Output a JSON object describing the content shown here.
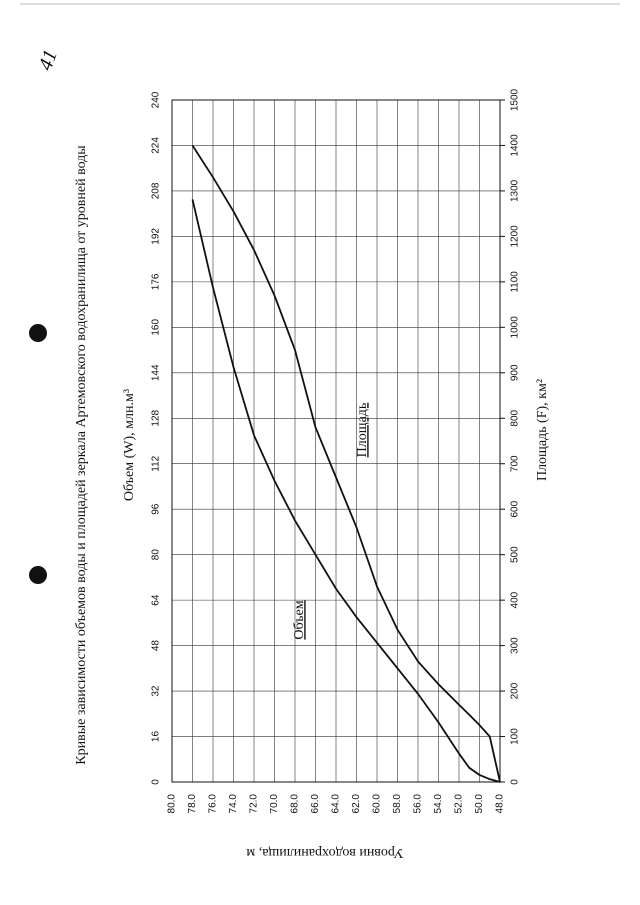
{
  "page_number": "41",
  "chart_data": {
    "type": "line",
    "title": "Кривые зависимости объемов воды и площадей зеркала Артемовского водохранилища от уровней воды",
    "x_label": "Уровни водохранилища, м",
    "y_label": "Объем (W),  млн.м³",
    "y2_label": "Площадь (F), км²",
    "x": [
      48,
      49,
      50,
      51,
      52,
      54,
      56,
      58,
      60,
      62,
      64,
      66,
      68,
      70,
      72,
      74,
      76,
      78
    ],
    "series": [
      {
        "name": "Объем",
        "color": "#111111",
        "values": [
          0,
          1,
          2.5,
          5,
          10,
          21,
          31,
          40,
          49,
          58,
          68,
          80,
          92,
          106,
          122,
          146,
          174,
          205
        ]
      },
      {
        "name": "Площадь",
        "color": "#111111",
        "axis": "y2",
        "values": [
          0,
          100,
          125,
          148,
          170,
          215,
          265,
          335,
          430,
          560,
          670,
          780,
          950,
          1070,
          1170,
          1255,
          1330,
          1400
        ]
      }
    ],
    "xlim": [
      48,
      80
    ],
    "xticks": [
      {
        "value": 48,
        "label": "48.0"
      },
      {
        "value": 50,
        "label": "50.0"
      },
      {
        "value": 52,
        "label": "52.0"
      },
      {
        "value": 54,
        "label": "54.0"
      },
      {
        "value": 56,
        "label": "56.0"
      },
      {
        "value": 58,
        "label": "58.0"
      },
      {
        "value": 60,
        "label": "60.0"
      },
      {
        "value": 62,
        "label": "62.0"
      },
      {
        "value": 64,
        "label": "64.0"
      },
      {
        "value": 66,
        "label": "66.0"
      },
      {
        "value": 68,
        "label": "68.0"
      },
      {
        "value": 70,
        "label": "70.0"
      },
      {
        "value": 72,
        "label": "72.0"
      },
      {
        "value": 74,
        "label": "74.0"
      },
      {
        "value": 76,
        "label": "76.0"
      },
      {
        "value": 78,
        "label": "78.0"
      },
      {
        "value": 80,
        "label": "80.0"
      }
    ],
    "ylim": [
      0,
      240
    ],
    "yticks": [
      0,
      16,
      32,
      48,
      64,
      80,
      96,
      112,
      128,
      144,
      160,
      176,
      192,
      208,
      224,
      240
    ],
    "y2lim": [
      0,
      1500
    ],
    "y2ticks": [
      0,
      100,
      200,
      300,
      400,
      500,
      600,
      700,
      800,
      900,
      1000,
      1100,
      1200,
      1300,
      1400,
      1500
    ],
    "grid": true
  }
}
